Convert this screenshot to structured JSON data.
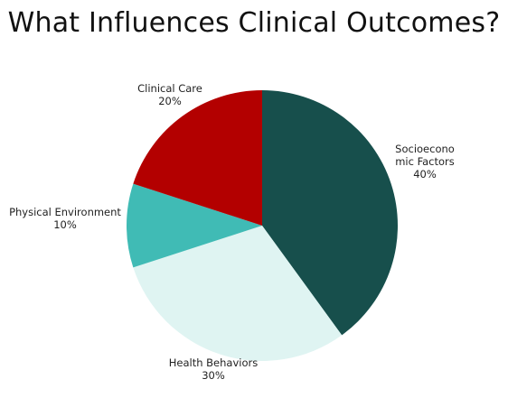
{
  "chart_data": {
    "type": "pie",
    "title": "What Influences Clinical Outcomes?",
    "start_angle_deg": 0,
    "direction": "clockwise",
    "slices": [
      {
        "label_lines": [
          "Socioecono",
          "mic Factors"
        ],
        "label": "Socioeconomic Factors",
        "value": 40,
        "value_label": "40%",
        "color": "#174f4c"
      },
      {
        "label_lines": [
          "Health Behaviors"
        ],
        "label": "Health Behaviors",
        "value": 30,
        "value_label": "30%",
        "color": "#dff4f2"
      },
      {
        "label_lines": [
          "Physical Environment"
        ],
        "label": "Physical Environment",
        "value": 10,
        "value_label": "10%",
        "color": "#40bbb5"
      },
      {
        "label_lines": [
          "Clinical Care"
        ],
        "label": "Clinical Care",
        "value": 20,
        "value_label": "20%",
        "color": "#b30000"
      }
    ]
  }
}
